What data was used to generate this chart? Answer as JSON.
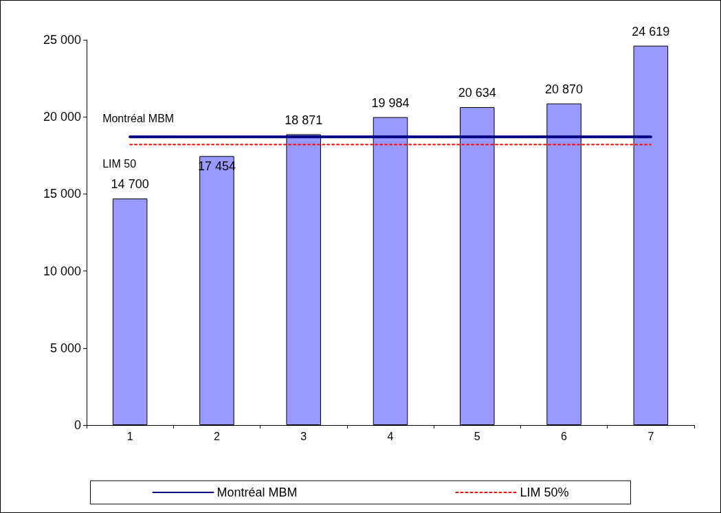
{
  "chart_data": {
    "type": "bar",
    "categories": [
      "1",
      "2",
      "3",
      "4",
      "5",
      "6",
      "7"
    ],
    "series": [
      {
        "color": "#9999ff",
        "values": [
          14700,
          17454,
          18871,
          19984,
          20634,
          20870,
          24619
        ]
      },
      {
        "type": "line",
        "name": "Montréal MBM",
        "color": "#000080",
        "line_style": "solid",
        "values": [
          18700,
          18700,
          18700,
          18700,
          18700,
          18700,
          18700
        ],
        "value_labels": [
          null,
          null,
          null,
          null,
          null,
          null,
          null
        ]
      },
      {
        "type": "line",
        "name": "LIM 50%",
        "color": "#ff0000",
        "line_style": "dotted",
        "values": [
          18200,
          18200,
          18200,
          18200,
          18200,
          18200,
          18200
        ],
        "value_labels": [
          null,
          null,
          null,
          null,
          null,
          null,
          null
        ]
      }
    ],
    "ylim": [
      0,
      25000
    ],
    "yticks": [
      0,
      5000,
      10000,
      15000,
      20000,
      25000
    ],
    "data_labels": true,
    "grid": false,
    "legend": "bottom",
    "marker": "none",
    "annotations": [
      {
        "text": "Montréal MBM",
        "x": "1",
        "y": 18700
      },
      {
        "text": "LIM 50",
        "x": "1",
        "y": 18200
      }
    ]
  }
}
